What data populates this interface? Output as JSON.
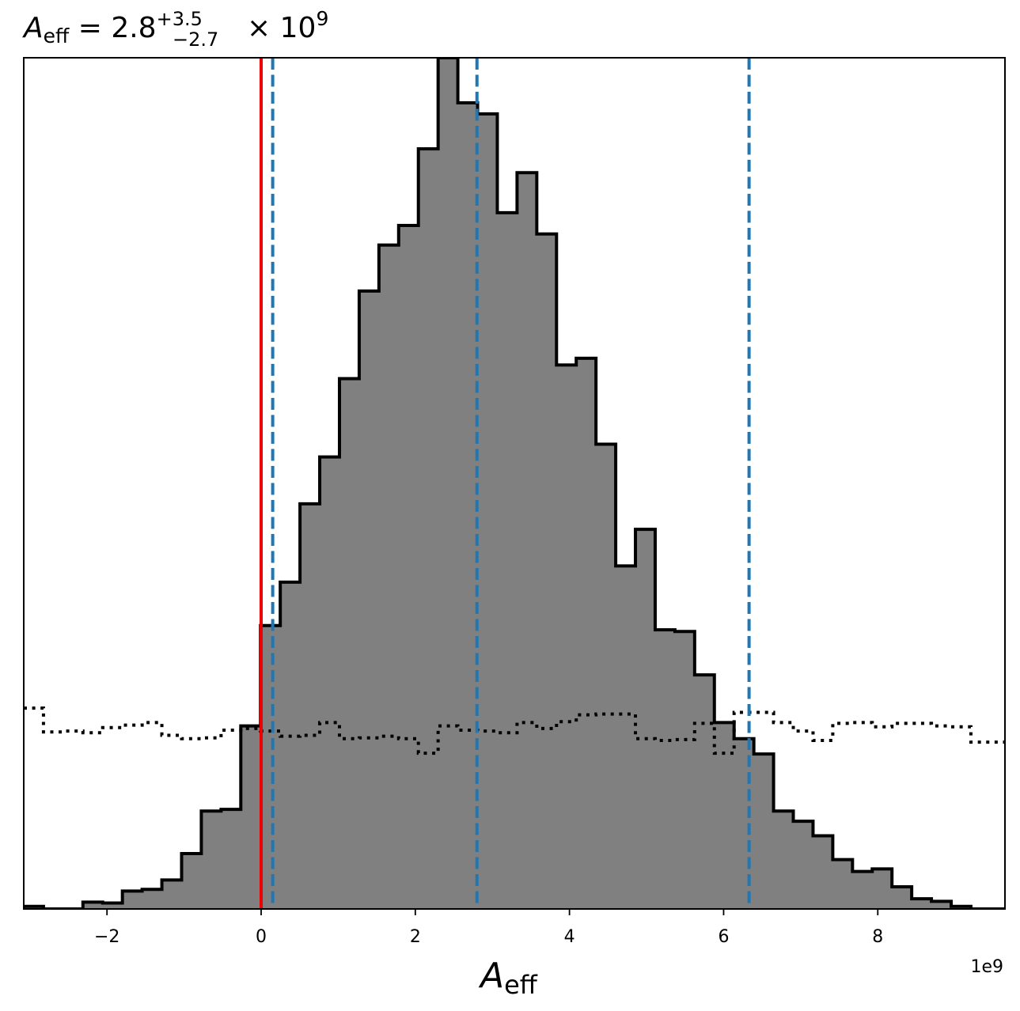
{
  "chart_data": {
    "type": "histogram",
    "title": {
      "symbol": "A",
      "subscript": "eff",
      "equals": "=",
      "median": "2.8",
      "upper": "+3.5",
      "lower": "−2.7",
      "times": "×",
      "base": "10",
      "exponent": "9"
    },
    "xlabel": {
      "symbol": "A",
      "subscript": "eff"
    },
    "offset_text": "1e9",
    "xlim": [
      -3.08,
      9.65
    ],
    "ylim": [
      0,
      1
    ],
    "x_ticks": [
      {
        "value": -2,
        "label": "−2"
      },
      {
        "value": 0,
        "label": "0"
      },
      {
        "value": 2,
        "label": "2"
      },
      {
        "value": 4,
        "label": "4"
      },
      {
        "value": 6,
        "label": "6"
      },
      {
        "value": 8,
        "label": "8"
      }
    ],
    "posterior_histogram": {
      "fill_color": "#808080",
      "edge_color": "#000000",
      "bin_edges": [
        -3.08,
        -2.824,
        -2.568,
        -2.312,
        -2.056,
        -1.8,
        -1.544,
        -1.288,
        -1.032,
        -0.776,
        -0.52,
        -0.264,
        -0.008,
        0.248,
        0.504,
        0.76,
        1.016,
        1.272,
        1.528,
        1.784,
        2.04,
        2.296,
        2.552,
        2.808,
        3.064,
        3.32,
        3.576,
        3.832,
        4.088,
        4.344,
        4.6,
        4.856,
        5.112,
        5.368,
        5.624,
        5.88,
        6.136,
        6.392,
        6.648,
        6.904,
        7.16,
        7.416,
        7.672,
        7.928,
        8.184,
        8.44,
        8.696,
        8.952,
        9.208,
        9.464,
        9.65
      ],
      "values": [
        0.003,
        0.0,
        0.0,
        0.008,
        0.007,
        0.021,
        0.023,
        0.034,
        0.065,
        0.115,
        0.117,
        0.215,
        0.333,
        0.384,
        0.476,
        0.531,
        0.623,
        0.726,
        0.78,
        0.803,
        0.893,
        1.0,
        0.947,
        0.934,
        0.818,
        0.865,
        0.793,
        0.639,
        0.647,
        0.546,
        0.403,
        0.446,
        0.328,
        0.326,
        0.275,
        0.219,
        0.2,
        0.182,
        0.115,
        0.103,
        0.086,
        0.058,
        0.044,
        0.047,
        0.026,
        0.012,
        0.009,
        0.003,
        0.0,
        0.0
      ]
    },
    "prior_histogram": {
      "line_style": "dotted",
      "color": "#000000",
      "bin_edges": [
        -3.08,
        -2.824,
        -2.568,
        -2.312,
        -2.056,
        -1.8,
        -1.544,
        -1.288,
        -1.032,
        -0.776,
        -0.52,
        -0.264,
        -0.008,
        0.248,
        0.504,
        0.76,
        1.016,
        1.272,
        1.528,
        1.784,
        2.04,
        2.296,
        2.552,
        2.808,
        3.064,
        3.32,
        3.576,
        3.832,
        4.088,
        4.344,
        4.6,
        4.856,
        5.112,
        5.368,
        5.624,
        5.88,
        6.136,
        6.392,
        6.648,
        6.904,
        7.16,
        7.416,
        7.672,
        7.928,
        8.184,
        8.44,
        8.696,
        8.952,
        9.208,
        9.464,
        9.65
      ],
      "values": [
        0.236,
        0.208,
        0.209,
        0.207,
        0.213,
        0.216,
        0.219,
        0.204,
        0.2,
        0.201,
        0.21,
        0.212,
        0.209,
        0.203,
        0.204,
        0.219,
        0.2,
        0.201,
        0.203,
        0.2,
        0.183,
        0.215,
        0.21,
        0.209,
        0.207,
        0.219,
        0.212,
        0.22,
        0.228,
        0.229,
        0.229,
        0.2,
        0.198,
        0.199,
        0.218,
        0.183,
        0.231,
        0.231,
        0.219,
        0.209,
        0.198,
        0.218,
        0.219,
        0.214,
        0.218,
        0.218,
        0.215,
        0.214,
        0.196,
        0.196
      ]
    },
    "vertical_lines": [
      {
        "value": 0,
        "style": "solid",
        "color": "#ee0000"
      },
      {
        "value": 0.15,
        "style": "dashed",
        "color": "#1f77b4"
      },
      {
        "value": 2.8,
        "style": "dashed",
        "color": "#1f77b4"
      },
      {
        "value": 6.33,
        "style": "dashed",
        "color": "#1f77b4"
      }
    ]
  }
}
